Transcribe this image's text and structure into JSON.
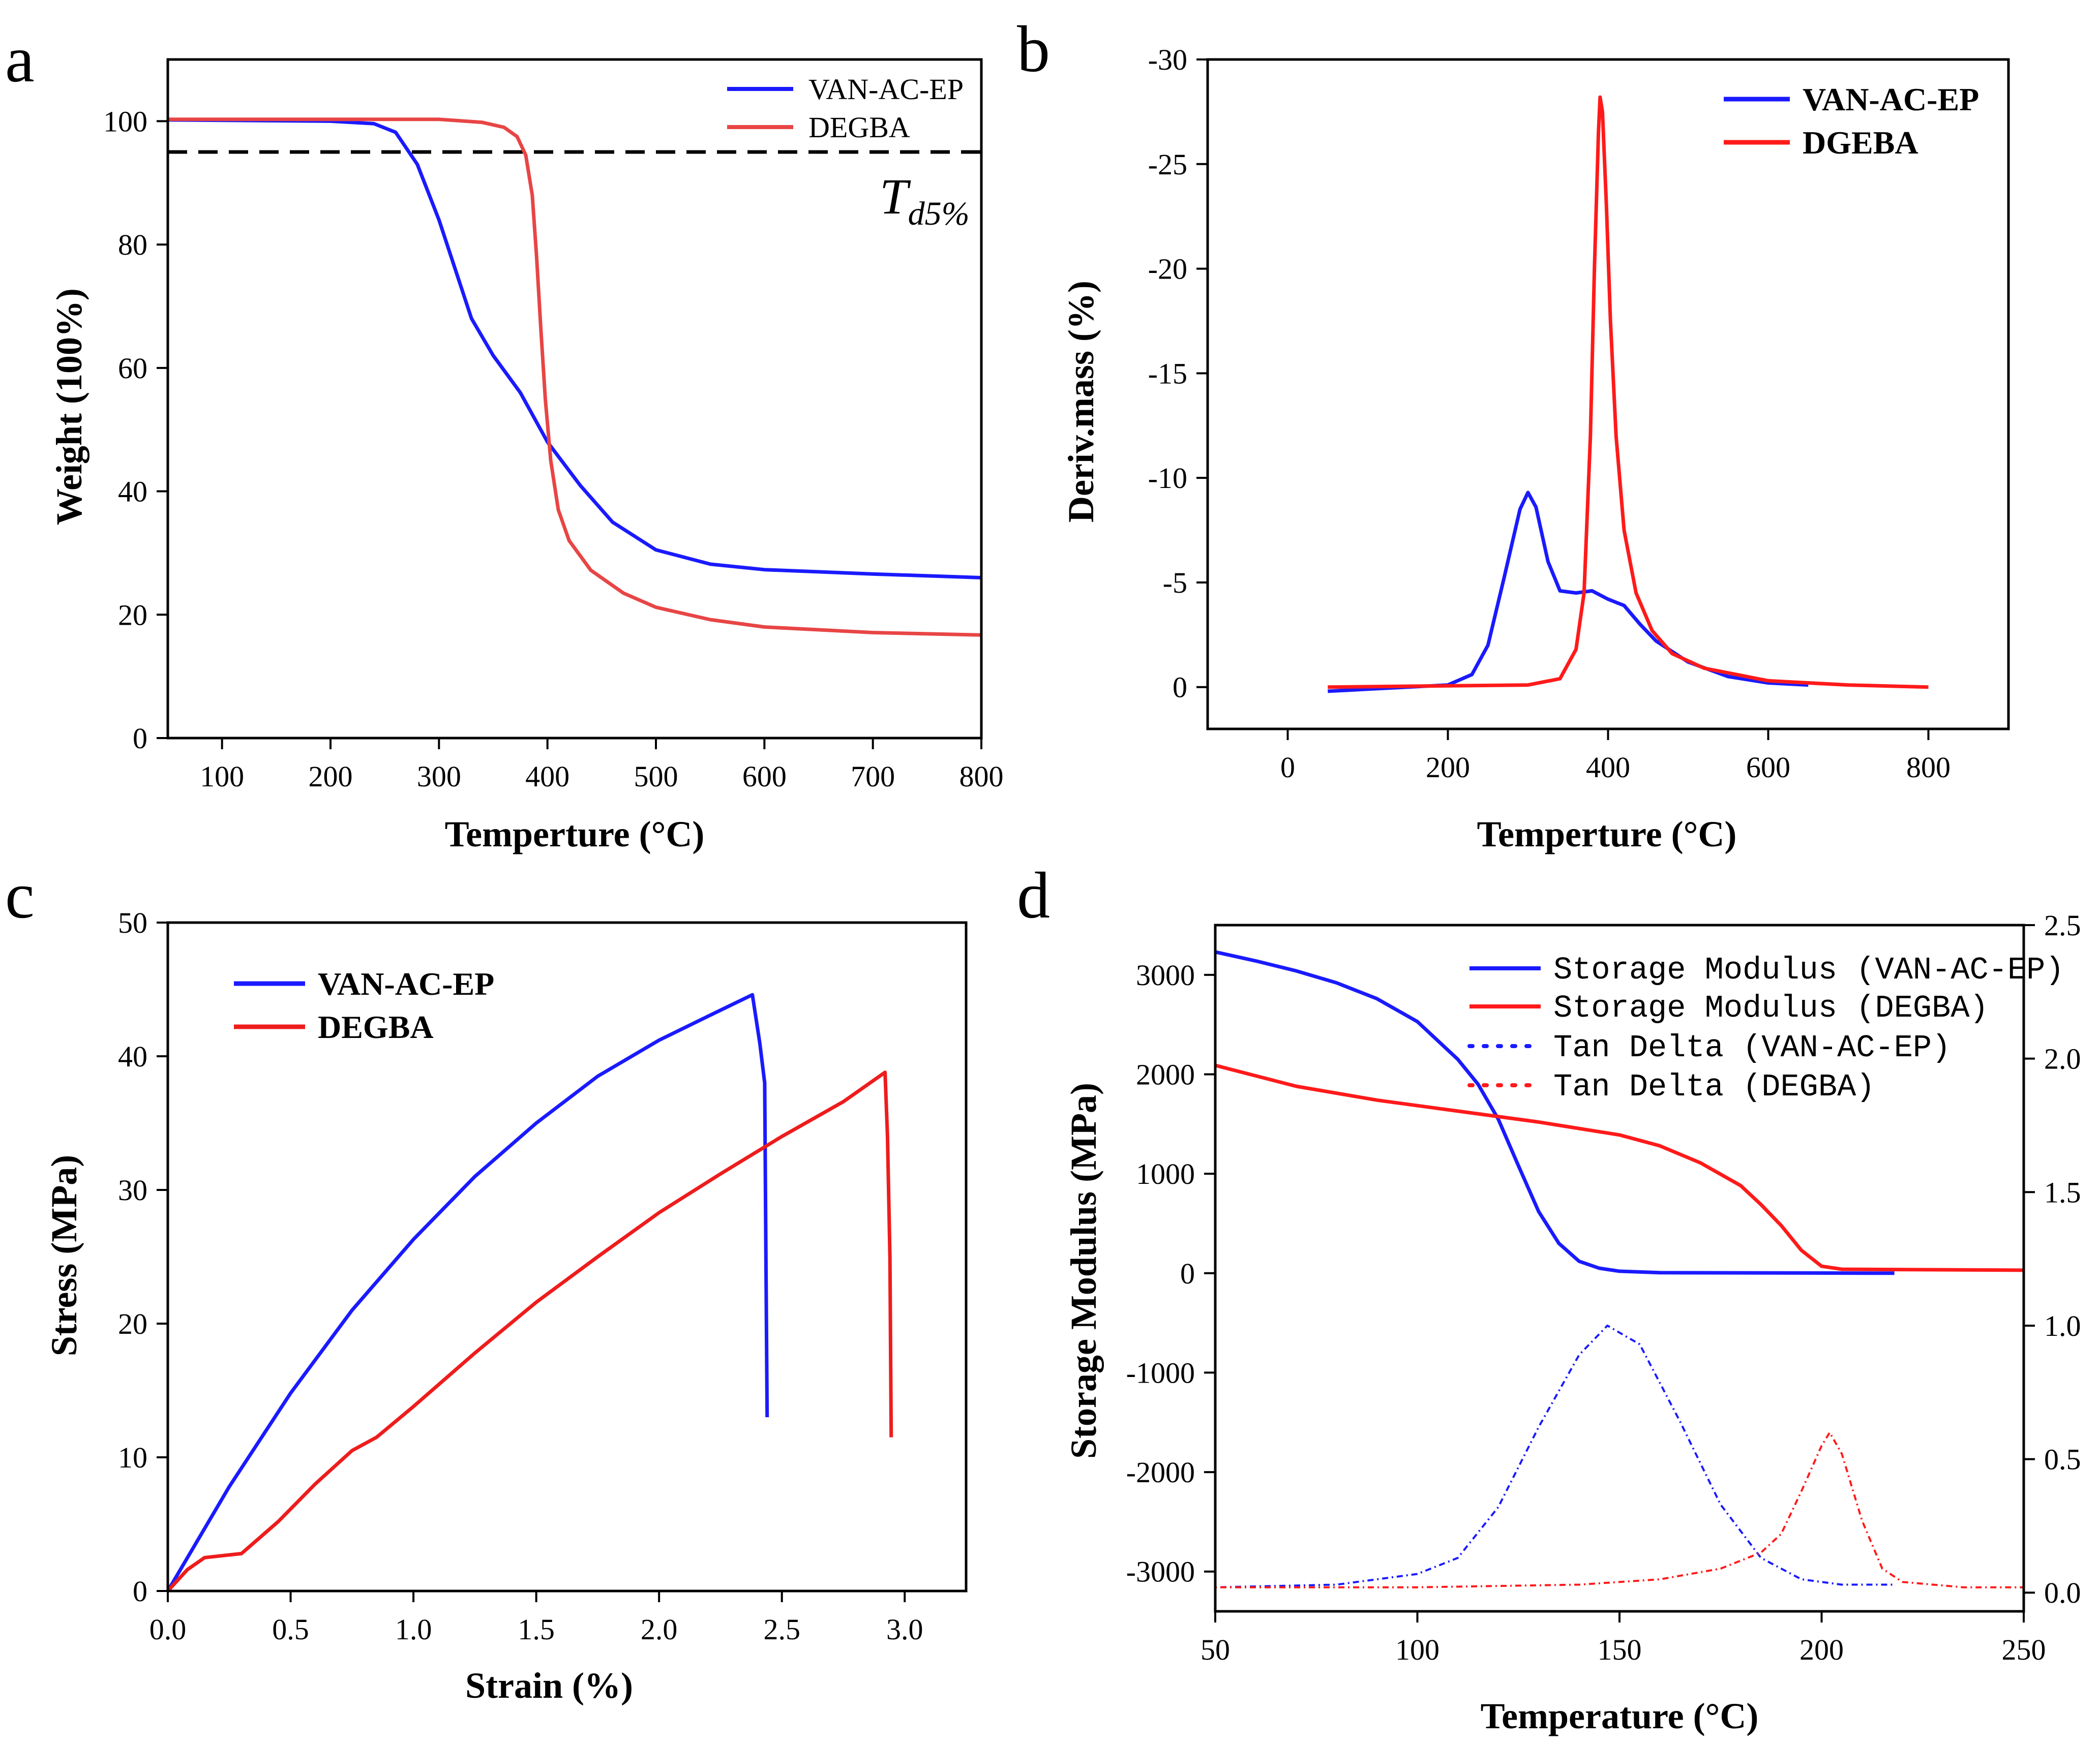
{
  "panels": [
    {
      "id": "a",
      "label": "a",
      "chart_data": {
        "type": "line",
        "xlabel": "Temperture (°C)",
        "ylabel": "Weight (100%)",
        "xlim": [
          50,
          800
        ],
        "ylim": [
          0,
          110
        ],
        "xticks": [
          100,
          200,
          300,
          400,
          500,
          600,
          700,
          800
        ],
        "yticks": [
          0,
          20,
          40,
          60,
          80,
          100
        ],
        "annotation": {
          "text": "T",
          "sub": "d5%",
          "y": 95
        },
        "series": [
          {
            "name": "VAN-AC-EP",
            "color": "#1a1aff",
            "style": "solid",
            "points": [
              [
                50,
                100.2
              ],
              [
                200,
                100
              ],
              [
                240,
                99.6
              ],
              [
                260,
                98.2
              ],
              [
                280,
                93
              ],
              [
                300,
                84
              ],
              [
                315,
                76
              ],
              [
                330,
                68
              ],
              [
                350,
                62
              ],
              [
                375,
                56
              ],
              [
                400,
                48
              ],
              [
                430,
                41
              ],
              [
                460,
                35
              ],
              [
                500,
                30.5
              ],
              [
                550,
                28.2
              ],
              [
                600,
                27.3
              ],
              [
                700,
                26.6
              ],
              [
                800,
                26
              ]
            ]
          },
          {
            "name": "DEGBA",
            "color": "#e84545",
            "style": "solid",
            "points": [
              [
                50,
                100.3
              ],
              [
                300,
                100.3
              ],
              [
                340,
                99.8
              ],
              [
                360,
                99
              ],
              [
                372,
                97.5
              ],
              [
                380,
                94.5
              ],
              [
                386,
                88
              ],
              [
                390,
                78
              ],
              [
                394,
                66
              ],
              [
                398,
                55
              ],
              [
                403,
                45
              ],
              [
                410,
                37
              ],
              [
                420,
                32
              ],
              [
                440,
                27.2
              ],
              [
                470,
                23.5
              ],
              [
                500,
                21.2
              ],
              [
                550,
                19.2
              ],
              [
                600,
                18
              ],
              [
                700,
                17.1
              ],
              [
                800,
                16.7
              ]
            ]
          }
        ]
      }
    },
    {
      "id": "b",
      "label": "b",
      "chart_data": {
        "type": "line",
        "xlabel": "Temperture (°C)",
        "ylabel": "Deriv.mass (%)",
        "xlim": [
          -100,
          900
        ],
        "ylim": [
          2,
          -30
        ],
        "xticks": [
          0,
          200,
          400,
          600,
          800
        ],
        "yticks": [
          0,
          -5,
          -10,
          -15,
          -20,
          -25,
          -30
        ],
        "series": [
          {
            "name": "VAN-AC-EP",
            "color": "#1a1aff",
            "style": "solid",
            "points": [
              [
                50,
                0.2
              ],
              [
                100,
                0.1
              ],
              [
                200,
                -0.1
              ],
              [
                230,
                -0.6
              ],
              [
                250,
                -2
              ],
              [
                270,
                -5.2
              ],
              [
                290,
                -8.5
              ],
              [
                300,
                -9.3
              ],
              [
                310,
                -8.6
              ],
              [
                325,
                -6
              ],
              [
                340,
                -4.6
              ],
              [
                360,
                -4.5
              ],
              [
                380,
                -4.6
              ],
              [
                400,
                -4.2
              ],
              [
                420,
                -3.9
              ],
              [
                440,
                -3
              ],
              [
                460,
                -2.2
              ],
              [
                500,
                -1.2
              ],
              [
                550,
                -0.5
              ],
              [
                600,
                -0.2
              ],
              [
                650,
                -0.1
              ]
            ]
          },
          {
            "name": "DGEBA",
            "color": "#ff1a1a",
            "style": "solid",
            "points": [
              [
                50,
                0
              ],
              [
                300,
                -0.1
              ],
              [
                340,
                -0.4
              ],
              [
                360,
                -1.8
              ],
              [
                370,
                -4.5
              ],
              [
                378,
                -12
              ],
              [
                383,
                -20
              ],
              [
                388,
                -26.5
              ],
              [
                390,
                -28.2
              ],
              [
                393,
                -27.5
              ],
              [
                398,
                -23
              ],
              [
                403,
                -17.5
              ],
              [
                410,
                -12
              ],
              [
                420,
                -7.5
              ],
              [
                435,
                -4.5
              ],
              [
                455,
                -2.7
              ],
              [
                480,
                -1.6
              ],
              [
                520,
                -0.9
              ],
              [
                600,
                -0.3
              ],
              [
                700,
                -0.1
              ],
              [
                800,
                0
              ]
            ]
          }
        ]
      }
    },
    {
      "id": "c",
      "label": "c",
      "chart_data": {
        "type": "line",
        "xlabel": "Strain (%)",
        "ylabel": "Stress (MPa)",
        "xlim": [
          0,
          3.25
        ],
        "ylim": [
          0,
          50
        ],
        "xticks": [
          0.0,
          0.5,
          1.0,
          1.5,
          2.0,
          2.5,
          3.0
        ],
        "xtick_labels": [
          "0.0",
          "0.5",
          "1.0",
          "1.5",
          "2.0",
          "2.5",
          "3.0"
        ],
        "yticks": [
          0,
          10,
          20,
          30,
          40,
          50
        ],
        "series": [
          {
            "name": "VAN-AC-EP",
            "color": "#1a1aff",
            "style": "solid",
            "points": [
              [
                0,
                0
              ],
              [
                0.25,
                7.8
              ],
              [
                0.5,
                14.8
              ],
              [
                0.75,
                21
              ],
              [
                1.0,
                26.3
              ],
              [
                1.25,
                31
              ],
              [
                1.5,
                35
              ],
              [
                1.75,
                38.5
              ],
              [
                2.0,
                41.2
              ],
              [
                2.2,
                43
              ],
              [
                2.38,
                44.6
              ],
              [
                2.41,
                41
              ],
              [
                2.43,
                38
              ],
              [
                2.435,
                25
              ],
              [
                2.44,
                13
              ]
            ]
          },
          {
            "name": "DEGBA",
            "color": "#ee1c1c",
            "style": "solid",
            "points": [
              [
                0,
                0
              ],
              [
                0.08,
                1.6
              ],
              [
                0.15,
                2.5
              ],
              [
                0.3,
                2.8
              ],
              [
                0.45,
                5.2
              ],
              [
                0.6,
                8
              ],
              [
                0.75,
                10.5
              ],
              [
                0.85,
                11.5
              ],
              [
                1.0,
                13.8
              ],
              [
                1.25,
                17.8
              ],
              [
                1.5,
                21.6
              ],
              [
                1.75,
                25
              ],
              [
                2.0,
                28.3
              ],
              [
                2.25,
                31.2
              ],
              [
                2.5,
                34
              ],
              [
                2.75,
                36.6
              ],
              [
                2.92,
                38.8
              ],
              [
                2.93,
                34
              ],
              [
                2.94,
                25
              ],
              [
                2.945,
                11.5
              ]
            ]
          }
        ]
      }
    },
    {
      "id": "d",
      "label": "d",
      "chart_data": {
        "type": "line",
        "xlabel": "Temperature (°C)",
        "ylabel": "Storage Modulus (MPa)",
        "xlim": [
          50,
          250
        ],
        "ylim": [
          -3400,
          3500
        ],
        "y2lim": [
          -0.07,
          2.5
        ],
        "xticks": [
          50,
          100,
          150,
          200,
          250
        ],
        "yticks": [
          -3000,
          -2000,
          -1000,
          0,
          1000,
          2000,
          3000
        ],
        "y2ticks": [
          0.0,
          0.5,
          1.0,
          1.5,
          2.0,
          2.5
        ],
        "y2tick_labels": [
          "0.0",
          "0.5",
          "1.0",
          "1.5",
          "2.0",
          "2.5"
        ],
        "series": [
          {
            "name": "Storage Modulus (VAN-AC-EP)",
            "color": "#1a1aff",
            "style": "solid",
            "axis": "left",
            "points": [
              [
                50,
                3230
              ],
              [
                60,
                3140
              ],
              [
                70,
                3040
              ],
              [
                80,
                2920
              ],
              [
                90,
                2760
              ],
              [
                100,
                2530
              ],
              [
                110,
                2150
              ],
              [
                115,
                1900
              ],
              [
                120,
                1550
              ],
              [
                125,
                1080
              ],
              [
                130,
                620
              ],
              [
                135,
                300
              ],
              [
                140,
                120
              ],
              [
                145,
                50
              ],
              [
                150,
                20
              ],
              [
                160,
                5
              ],
              [
                218,
                0
              ]
            ]
          },
          {
            "name": "Storage Modulus (DEGBA)",
            "color": "#ff1a1a",
            "style": "solid",
            "axis": "left",
            "points": [
              [
                50,
                2090
              ],
              [
                70,
                1880
              ],
              [
                90,
                1740
              ],
              [
                110,
                1630
              ],
              [
                130,
                1520
              ],
              [
                150,
                1390
              ],
              [
                160,
                1280
              ],
              [
                170,
                1110
              ],
              [
                180,
                880
              ],
              [
                185,
                690
              ],
              [
                190,
                480
              ],
              [
                195,
                230
              ],
              [
                200,
                70
              ],
              [
                205,
                40
              ],
              [
                250,
                30
              ]
            ]
          },
          {
            "name": "Tan Delta (VAN-AC-EP)",
            "color": "#1a1aff",
            "style": "dotted",
            "axis": "right",
            "points": [
              [
                50,
                0.02
              ],
              [
                80,
                0.03
              ],
              [
                100,
                0.07
              ],
              [
                110,
                0.13
              ],
              [
                120,
                0.32
              ],
              [
                130,
                0.62
              ],
              [
                140,
                0.89
              ],
              [
                147,
                1.0
              ],
              [
                155,
                0.93
              ],
              [
                165,
                0.64
              ],
              [
                175,
                0.33
              ],
              [
                185,
                0.13
              ],
              [
                195,
                0.05
              ],
              [
                205,
                0.03
              ],
              [
                218,
                0.03
              ]
            ]
          },
          {
            "name": "Tan Delta (DEGBA)",
            "color": "#ff1a1a",
            "style": "dotted",
            "axis": "right",
            "points": [
              [
                50,
                0.02
              ],
              [
                100,
                0.02
              ],
              [
                140,
                0.03
              ],
              [
                160,
                0.05
              ],
              [
                175,
                0.09
              ],
              [
                185,
                0.15
              ],
              [
                190,
                0.22
              ],
              [
                195,
                0.38
              ],
              [
                200,
                0.55
              ],
              [
                202,
                0.6
              ],
              [
                205,
                0.52
              ],
              [
                210,
                0.27
              ],
              [
                215,
                0.09
              ],
              [
                220,
                0.04
              ],
              [
                235,
                0.02
              ],
              [
                250,
                0.02
              ]
            ]
          }
        ]
      }
    }
  ]
}
